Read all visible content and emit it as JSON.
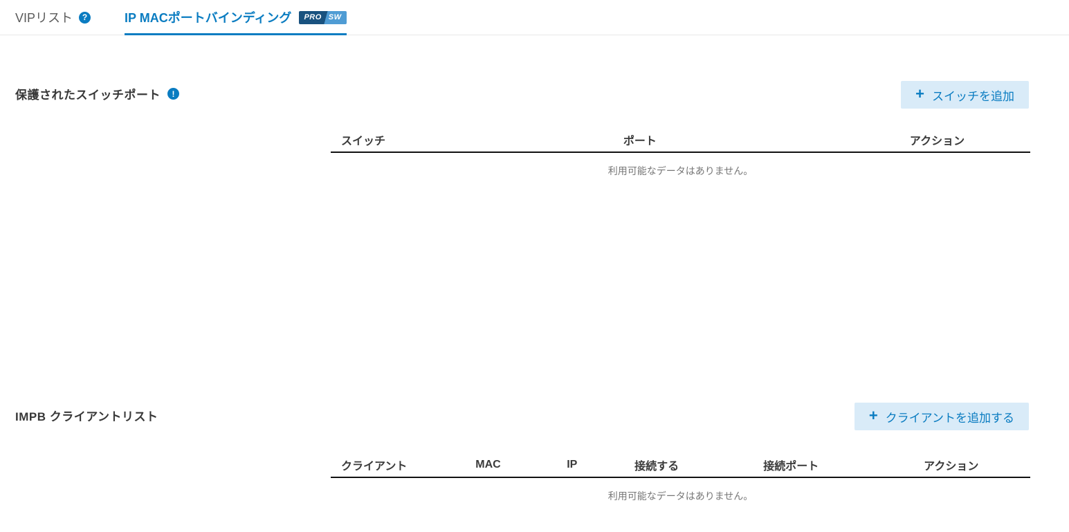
{
  "colors": {
    "accent": "#0a7cc1",
    "button_bg": "#d9ebf8",
    "badge_pro_bg": "#19527f",
    "badge_sw_bg": "#4f9cd4",
    "table_rule": "#111111"
  },
  "icons": {
    "help": "?",
    "info": "!",
    "plus": "+"
  },
  "tabs": {
    "vip": {
      "label": "VIPリスト"
    },
    "impb": {
      "label": "IP MACポートバインディング",
      "badge": {
        "pro": "PRO",
        "sw": "SW"
      }
    }
  },
  "sections": {
    "switch_ports": {
      "title": "保護されたスイッチポート",
      "add_button": "スイッチを追加",
      "columns": {
        "c1": "スイッチ",
        "c2": "ポート",
        "c3": "アクション"
      },
      "empty_text": "利用可能なデータはありません。",
      "rows": []
    },
    "impb_clients": {
      "title": "IMPB クライアントリスト",
      "add_button": "クライアントを追加する",
      "columns": {
        "c1": "クライアント",
        "c2": "MAC",
        "c3": "IP",
        "c4": "接続する",
        "c5": "接続ポート",
        "c6": "アクション"
      },
      "empty_text": "利用可能なデータはありません。",
      "rows": []
    }
  }
}
